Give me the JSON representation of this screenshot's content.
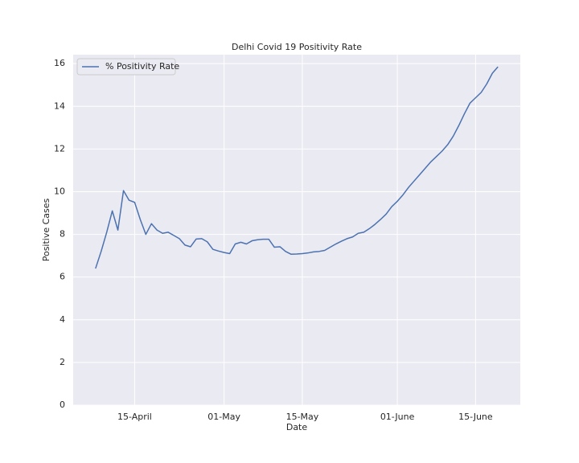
{
  "chart_data": {
    "type": "line",
    "title": "Delhi Covid 19 Positivity Rate",
    "x_label": "Date",
    "y_label": "Positive Cases",
    "x": [
      "04-08",
      "04-09",
      "04-10",
      "04-11",
      "04-12",
      "04-13",
      "04-14",
      "04-15",
      "04-16",
      "04-17",
      "04-18",
      "04-19",
      "04-20",
      "04-21",
      "04-22",
      "04-23",
      "04-24",
      "04-25",
      "04-26",
      "04-27",
      "04-28",
      "04-29",
      "04-30",
      "05-01",
      "05-02",
      "05-03",
      "05-04",
      "05-05",
      "05-06",
      "05-07",
      "05-08",
      "05-09",
      "05-10",
      "05-11",
      "05-12",
      "05-13",
      "05-14",
      "05-15",
      "05-16",
      "05-17",
      "05-18",
      "05-19",
      "05-20",
      "05-21",
      "05-22",
      "05-23",
      "05-24",
      "05-25",
      "05-26",
      "05-27",
      "05-28",
      "05-29",
      "05-30",
      "05-31",
      "06-01",
      "06-02",
      "06-03",
      "06-04",
      "06-05",
      "06-06",
      "06-07",
      "06-08",
      "06-09",
      "06-10",
      "06-11",
      "06-12",
      "06-13",
      "06-14",
      "06-15",
      "06-16",
      "06-17",
      "06-18",
      "06-19"
    ],
    "series": [
      {
        "name": "% Positivity Rate",
        "color": "#4c72b0",
        "values": [
          6.4,
          7.2,
          8.1,
          9.1,
          8.2,
          10.05,
          9.6,
          9.5,
          8.7,
          8.0,
          8.5,
          8.2,
          8.05,
          8.1,
          7.95,
          7.8,
          7.5,
          7.42,
          7.78,
          7.8,
          7.65,
          7.3,
          7.22,
          7.15,
          7.1,
          7.55,
          7.63,
          7.55,
          7.7,
          7.75,
          7.77,
          7.77,
          7.4,
          7.42,
          7.2,
          7.07,
          7.08,
          7.1,
          7.13,
          7.18,
          7.2,
          7.25,
          7.4,
          7.55,
          7.68,
          7.8,
          7.88,
          8.05,
          8.1,
          8.27,
          8.47,
          8.7,
          8.95,
          9.3,
          9.55,
          9.85,
          10.2,
          10.5,
          10.8,
          11.1,
          11.4,
          11.65,
          11.9,
          12.2,
          12.6,
          13.1,
          13.65,
          14.15,
          14.4,
          14.65,
          15.05,
          15.55,
          15.85
        ]
      }
    ],
    "xlim": [
      "04-04",
      "06-23"
    ],
    "xticks": [
      {
        "value": "04-15",
        "label": "15-April"
      },
      {
        "value": "05-01",
        "label": "01-May"
      },
      {
        "value": "05-15",
        "label": "15-May"
      },
      {
        "value": "06-01",
        "label": "01-June"
      },
      {
        "value": "06-15",
        "label": "15-June"
      }
    ],
    "ylim": [
      0,
      16.42
    ],
    "yticks": [
      0,
      2,
      4,
      6,
      8,
      10,
      12,
      14,
      16
    ],
    "grid": true,
    "legend": "upper left"
  }
}
